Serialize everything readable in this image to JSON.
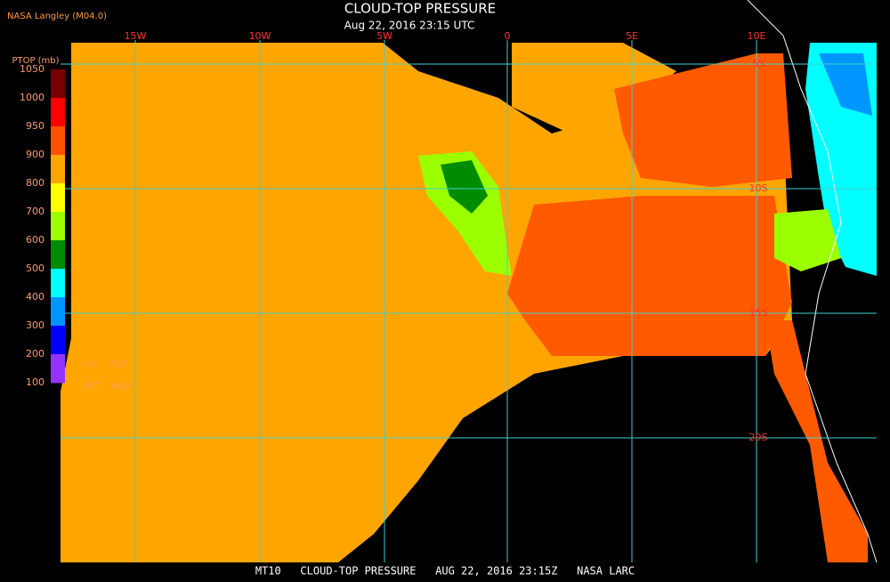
{
  "header": {
    "source": "NASA Langley (M04.0)",
    "title": "CLOUD-TOP PRESSURE",
    "subtitle": "Aug 22, 2016 23:15 UTC"
  },
  "colorbar": {
    "label": "PTOP (mb)",
    "ticks": [
      "1050",
      "1000",
      "950",
      "900",
      "800",
      "700",
      "600",
      "500",
      "400",
      "300",
      "200",
      "100"
    ],
    "colors": [
      "#780000",
      "#ff0000",
      "#ff5000",
      "#ffa500",
      "#ffff00",
      "#9cff00",
      "#008c00",
      "#00ffff",
      "#0096ff",
      "#0000ff",
      "#9632ff"
    ],
    "flags": [
      "NO",
      "OUT",
      "RET",
      "VALR"
    ]
  },
  "grid": {
    "lon_labels": [
      "15W",
      "10W",
      "5W",
      "0",
      "5E",
      "10E"
    ],
    "lat_labels": [
      "5S",
      "10S",
      "15S",
      "20S"
    ],
    "color": "#40d0d0"
  },
  "footer": {
    "text": "MT10   CLOUD-TOP PRESSURE   AUG 22, 2016 23:15Z   NASA LARC"
  }
}
